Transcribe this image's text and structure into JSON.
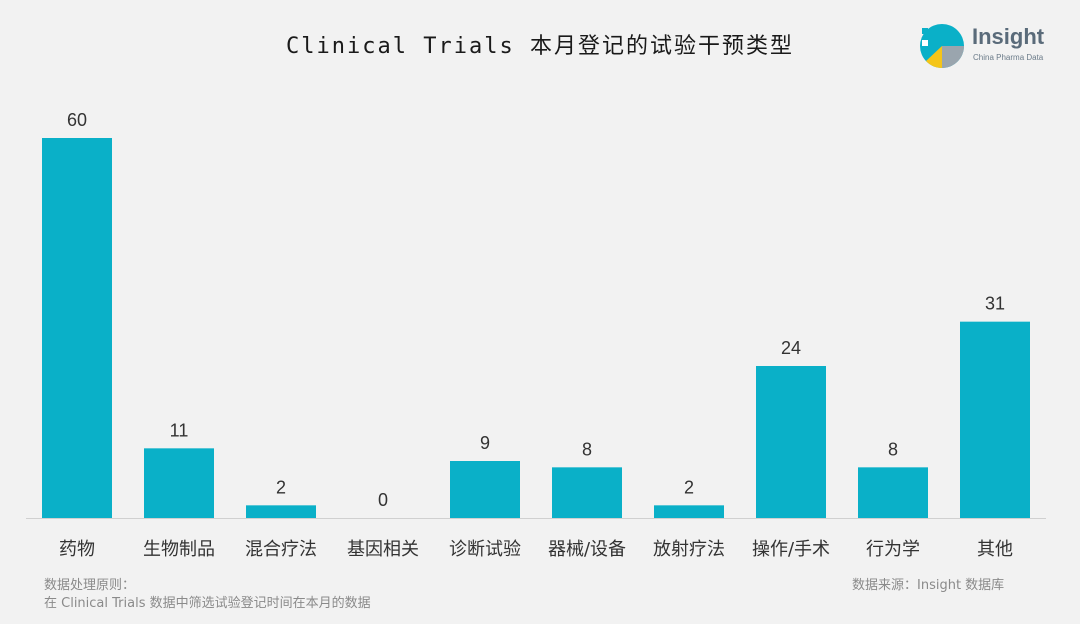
{
  "title": "Clinical Trials 本月登记的试验干预类型",
  "logo": {
    "brand": "Insight",
    "sub": "China Pharma Data",
    "icon": "insight-logo-icon"
  },
  "colors": {
    "bar": "#0ab0c8",
    "axis": "#d0d0d0",
    "label": "#333333",
    "background": "#f2f2f2"
  },
  "chart_data": {
    "type": "bar",
    "title": "Clinical Trials 本月登记的试验干预类型",
    "xlabel": "",
    "ylabel": "",
    "categories": [
      "药物",
      "生物制品",
      "混合疗法",
      "基因相关",
      "诊断试验",
      "器械/设备",
      "放射疗法",
      "操作/手术",
      "行为学",
      "其他"
    ],
    "values": [
      60,
      11,
      2,
      0,
      9,
      8,
      2,
      24,
      8,
      31
    ],
    "ylim": [
      0,
      60
    ],
    "grid": false,
    "legend": "none"
  },
  "footer": {
    "principle_label": "数据处理原则：",
    "principle_text": "在 Clinical Trials 数据中筛选试验登记时间在本月的数据",
    "source": "数据来源：Insight 数据库"
  }
}
